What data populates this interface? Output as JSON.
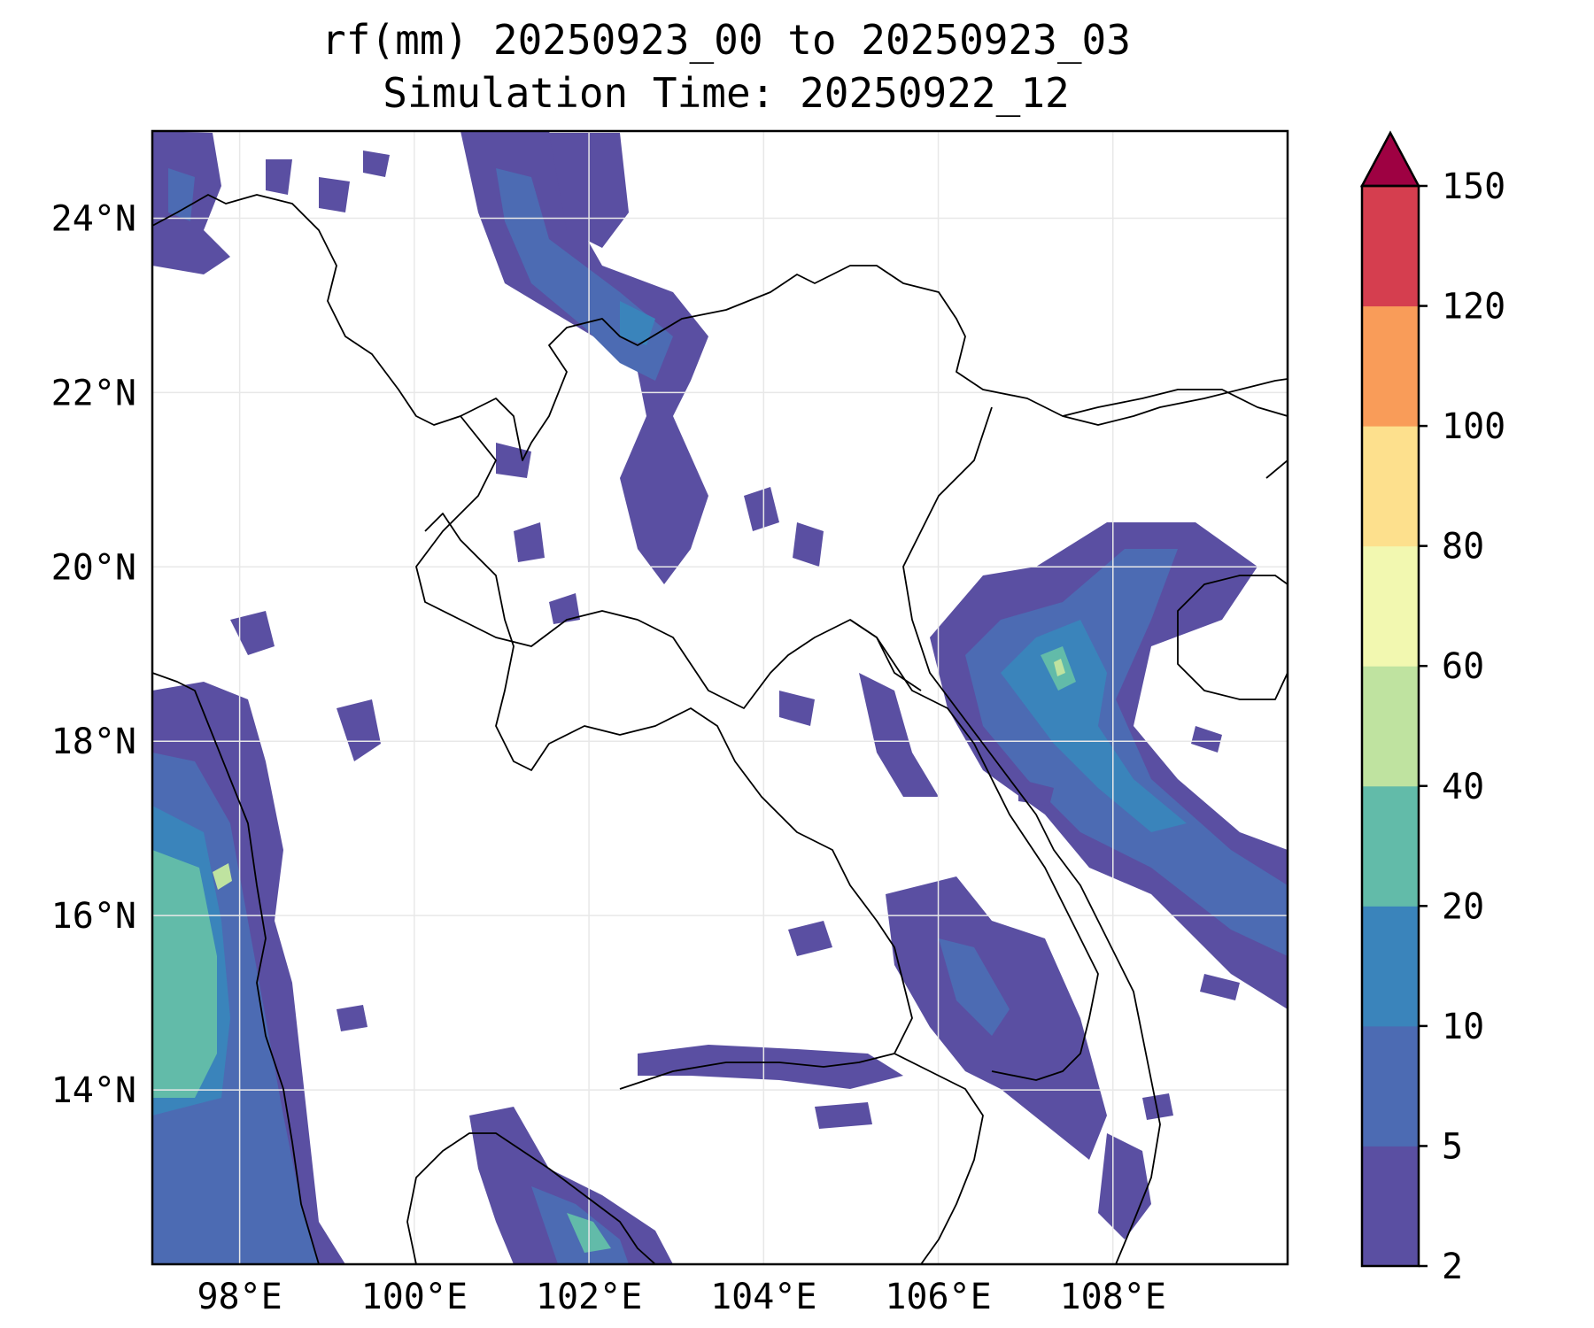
{
  "title": "rf(mm) 20250923_00 to 20250923_03",
  "subtitle": "Simulation Time: 20250922_12",
  "map": {
    "lon_range": [
      97,
      110
    ],
    "lat_range": [
      12,
      25
    ],
    "x_ticks": [
      "98°E",
      "100°E",
      "102°E",
      "104°E",
      "106°E",
      "108°E"
    ],
    "y_ticks": [
      "24°N",
      "22°N",
      "20°N",
      "18°N",
      "16°N",
      "14°N"
    ],
    "gridlines": true
  },
  "colorbar": {
    "levels": [
      "2",
      "5",
      "10",
      "20",
      "40",
      "60",
      "80",
      "100",
      "120",
      "150"
    ],
    "colors": [
      "#5a4fa2",
      "#4c6bb3",
      "#3a84bb",
      "#62bba9",
      "#bfe3a0",
      "#f2f8b0",
      "#fde08d",
      "#f99c59",
      "#d53e4f"
    ],
    "extend_color": "#9e0142",
    "extend": "max"
  },
  "rain_colors": {
    "light": "#5a4fa2",
    "moderate": "#4c6bb3",
    "heavy": "#3a84bb",
    "very_heavy": "#62bba9",
    "extreme": "#bfe3a0"
  }
}
